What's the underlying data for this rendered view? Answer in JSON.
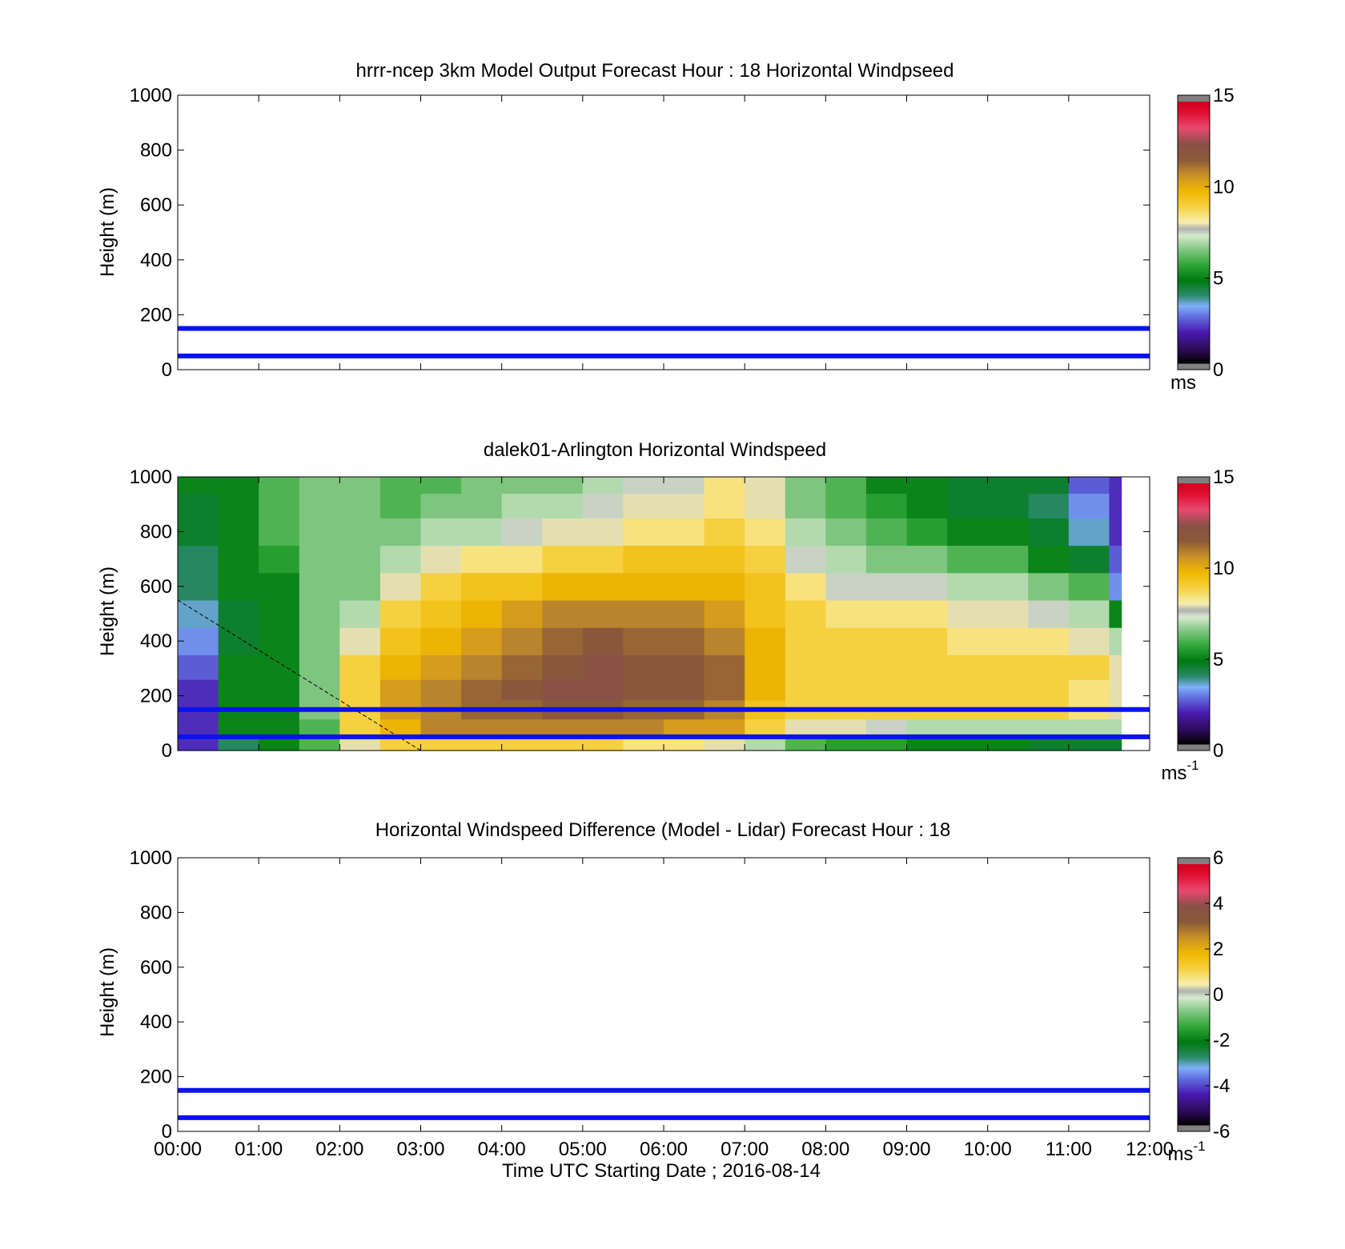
{
  "figure": {
    "x_tick_labels": [
      "00:00",
      "01:00",
      "02:00",
      "03:00",
      "04:00",
      "05:00",
      "06:00",
      "07:00",
      "08:00",
      "09:00",
      "10:00",
      "11:00",
      "12:00"
    ],
    "xlabel": "Time UTC  Starting Date ; 2016-08-14"
  },
  "chart_data": [
    {
      "type": "heatmap",
      "title": "hrrr-ncep 3km Model Output   Forecast Hour : 18 Horizontal Windpseed",
      "ylabel": "Height (m)",
      "ylim": [
        0,
        1000
      ],
      "y_ticks": [
        0,
        200,
        400,
        600,
        800,
        1000
      ],
      "xlim": [
        "00:00",
        "12:00"
      ],
      "reference_lines_m": [
        50,
        150
      ],
      "reference_line_color": "#0a12f0",
      "colorbar": {
        "min": 0,
        "max": 15,
        "ticks": [
          0,
          5,
          10,
          15
        ],
        "unit": "ms",
        "unit_sup": ""
      },
      "data": "empty"
    },
    {
      "type": "heatmap",
      "title": "dalek01-Arlington  Horizontal Windspeed",
      "ylabel": "Height (m)",
      "ylim": [
        0,
        1000
      ],
      "y_ticks": [
        0,
        200,
        400,
        600,
        800,
        1000
      ],
      "xlim": [
        "00:00",
        "12:00"
      ],
      "reference_lines_m": [
        50,
        150
      ],
      "reference_line_color": "#0a12f0",
      "dashed_line": {
        "from": [
          "00:00",
          550
        ],
        "to": [
          "03:00",
          0
        ]
      },
      "colorbar": {
        "min": 0,
        "max": 15,
        "ticks": [
          0,
          5,
          10,
          15
        ],
        "unit": "ms",
        "unit_sup": "-1"
      },
      "height_levels_m": [
        40,
        80,
        150,
        220,
        300,
        400,
        500,
        600,
        700,
        800,
        900,
        980
      ],
      "times_utc": [
        "00:00",
        "00:30",
        "01:00",
        "01:30",
        "02:00",
        "02:30",
        "03:00",
        "03:30",
        "04:00",
        "04:30",
        "05:00",
        "05:30",
        "06:00",
        "06:30",
        "07:00",
        "07:30",
        "08:00",
        "08:30",
        "09:00",
        "09:30",
        "10:00",
        "10:30",
        "11:00",
        "11:30"
      ],
      "windspeed_ms": [
        [
          2,
          2,
          2,
          2,
          2.5,
          3,
          3.5,
          4,
          4,
          4.5,
          4.5,
          5
        ],
        [
          4,
          5,
          5,
          5,
          5,
          4.5,
          4.5,
          5,
          5,
          5,
          5,
          5
        ],
        [
          5,
          5,
          5,
          5,
          5,
          5,
          5,
          5,
          5.5,
          6,
          6,
          6
        ],
        [
          6,
          6,
          6.5,
          6.5,
          6.5,
          6.5,
          6.5,
          6.5,
          6.5,
          6.5,
          6.5,
          6.5
        ],
        [
          8,
          9,
          9,
          9,
          9,
          8,
          7,
          6.5,
          6.5,
          6.5,
          6.5,
          6.5
        ],
        [
          9,
          10,
          10.5,
          10.5,
          10,
          9.5,
          9,
          8,
          7,
          6.5,
          6,
          6
        ],
        [
          9,
          11,
          11,
          11,
          10.5,
          10,
          9.5,
          9,
          8,
          7,
          6.5,
          6
        ],
        [
          9,
          11,
          11.5,
          11.5,
          11,
          10.5,
          10,
          9.5,
          8.5,
          7,
          6.5,
          6.5
        ],
        [
          9,
          11,
          11.5,
          12,
          11.5,
          11,
          10.5,
          9.5,
          8.5,
          7.5,
          7,
          6.5
        ],
        [
          9,
          11,
          12,
          12.5,
          12,
          11.5,
          11,
          10,
          9,
          8,
          7,
          6.5
        ],
        [
          9,
          11,
          12,
          12.5,
          12.5,
          12,
          11,
          10,
          9,
          8,
          7.5,
          7
        ],
        [
          8.5,
          11,
          11.5,
          12,
          12,
          11.5,
          11,
          10,
          9.5,
          8.5,
          8,
          7.5
        ],
        [
          8.5,
          10.5,
          11.5,
          12,
          12,
          11.5,
          11,
          10,
          9.5,
          8.5,
          8,
          7.5
        ],
        [
          8,
          10.5,
          11,
          11.5,
          11.5,
          11,
          10.5,
          10,
          9.5,
          9,
          8.5,
          8.5
        ],
        [
          7,
          9,
          9.5,
          10,
          10,
          10,
          9.5,
          9.5,
          9,
          8.5,
          8,
          8
        ],
        [
          6,
          8,
          9,
          9,
          9,
          9,
          9,
          8.5,
          7.5,
          7,
          6.5,
          6.5
        ],
        [
          5.5,
          8,
          9,
          9,
          9,
          9,
          8.5,
          7.5,
          7,
          6.5,
          6,
          6
        ],
        [
          5.5,
          7.5,
          9,
          9,
          9,
          9,
          8.5,
          7.5,
          6.5,
          6,
          5.5,
          5
        ],
        [
          5,
          7,
          9,
          9,
          9,
          9,
          8.5,
          7.5,
          6.5,
          5.5,
          5,
          5
        ],
        [
          5,
          7,
          9,
          9,
          9,
          8.5,
          8,
          7,
          6,
          5,
          4.5,
          4.5
        ],
        [
          5,
          7,
          9,
          9,
          9,
          8.5,
          8,
          7,
          6,
          5,
          4.5,
          4.5
        ],
        [
          4.5,
          7,
          9,
          9,
          9,
          8.5,
          7.5,
          6.5,
          5,
          4.5,
          4,
          4.5
        ],
        [
          4.5,
          7,
          8.5,
          8.5,
          9,
          8,
          7,
          6,
          4.5,
          3.5,
          3,
          2.5
        ],
        [
          4.5,
          7,
          8,
          8,
          8,
          7,
          5,
          3,
          2.5,
          2,
          2,
          2
        ]
      ]
    },
    {
      "type": "heatmap",
      "title": "Horizontal Windspeed Difference (Model - Lidar) Forecast Hour : 18",
      "ylabel": "Height (m)",
      "ylim": [
        0,
        1000
      ],
      "y_ticks": [
        0,
        200,
        400,
        600,
        800,
        1000
      ],
      "xlim": [
        "00:00",
        "12:00"
      ],
      "reference_lines_m": [
        50,
        150
      ],
      "reference_line_color": "#0a12f0",
      "colorbar": {
        "min": -6,
        "max": 6,
        "ticks": [
          -6,
          -4,
          -2,
          0,
          2,
          4,
          6
        ],
        "unit": "ms",
        "unit_sup": "-1"
      },
      "data": "empty"
    }
  ]
}
